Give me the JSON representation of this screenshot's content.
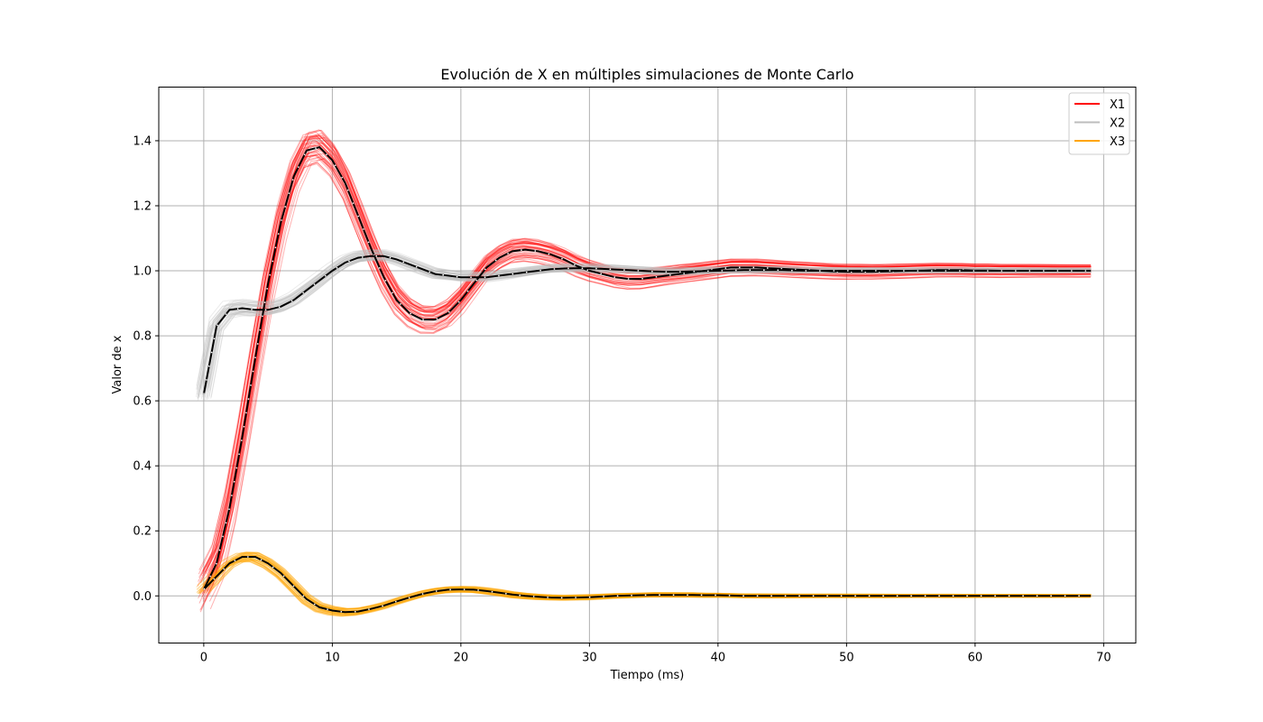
{
  "chart_data": {
    "type": "line",
    "title": "Evolución de X en múltiples simulaciones de Monte Carlo",
    "xlabel": "Tiempo (ms)",
    "ylabel": "Valor de x",
    "xlim": [
      -3.5,
      72.5
    ],
    "ylim": [
      -0.145,
      1.565
    ],
    "xticks": [
      0,
      10,
      20,
      30,
      40,
      50,
      60,
      70
    ],
    "yticks": [
      0.0,
      0.2,
      0.4,
      0.6,
      0.8,
      1.0,
      1.2,
      1.4
    ],
    "grid": true,
    "legend_position": "top-right",
    "x": [
      0,
      1,
      2,
      3,
      4,
      5,
      6,
      7,
      8,
      9,
      10,
      11,
      12,
      13,
      14,
      15,
      16,
      17,
      18,
      19,
      20,
      21,
      22,
      23,
      24,
      25,
      26,
      27,
      28,
      29,
      30,
      31,
      32,
      33,
      34,
      35,
      36,
      37,
      38,
      39,
      40,
      41,
      42,
      43,
      44,
      45,
      46,
      47,
      48,
      49,
      50,
      51,
      52,
      53,
      54,
      55,
      56,
      57,
      58,
      59,
      60,
      61,
      62,
      63,
      64,
      65,
      66,
      67,
      68,
      69
    ],
    "series": [
      {
        "name": "X1",
        "color": "#ff0000",
        "band": 0.05,
        "values": [
          0.02,
          0.1,
          0.27,
          0.49,
          0.73,
          0.96,
          1.15,
          1.29,
          1.37,
          1.38,
          1.34,
          1.27,
          1.17,
          1.07,
          0.98,
          0.91,
          0.87,
          0.85,
          0.85,
          0.87,
          0.91,
          0.96,
          1.01,
          1.04,
          1.06,
          1.065,
          1.06,
          1.05,
          1.035,
          1.015,
          1.0,
          0.99,
          0.98,
          0.975,
          0.975,
          0.98,
          0.985,
          0.99,
          0.995,
          1.0,
          1.005,
          1.01,
          1.01,
          1.01,
          1.008,
          1.006,
          1.004,
          1.002,
          1.0,
          0.998,
          0.997,
          0.997,
          0.997,
          0.998,
          0.999,
          1.0,
          1.001,
          1.002,
          1.002,
          1.002,
          1.001,
          1.001,
          1.0,
          1.0,
          1.0,
          1.0,
          1.0,
          1.0,
          1.0,
          1.0
        ]
      },
      {
        "name": "X2",
        "color": "#bdbdbd",
        "band": 0.022,
        "values": [
          0.62,
          0.83,
          0.88,
          0.885,
          0.88,
          0.88,
          0.89,
          0.91,
          0.94,
          0.97,
          1.0,
          1.025,
          1.04,
          1.045,
          1.045,
          1.035,
          1.02,
          1.005,
          0.99,
          0.985,
          0.98,
          0.98,
          0.98,
          0.985,
          0.99,
          0.995,
          1.0,
          1.005,
          1.007,
          1.008,
          1.008,
          1.006,
          1.004,
          1.002,
          1.0,
          0.998,
          0.997,
          0.997,
          0.998,
          0.999,
          1.0,
          1.001,
          1.002,
          1.002,
          1.002,
          1.002,
          1.001,
          1.0,
          1.0,
          1.0,
          1.0,
          1.0,
          1.0,
          1.0,
          1.0,
          1.0,
          1.0,
          1.0,
          1.0,
          1.0,
          1.0,
          1.0,
          1.0,
          1.0,
          1.0,
          1.0,
          1.0,
          1.0,
          1.0,
          1.0
        ]
      },
      {
        "name": "X3",
        "color": "#ffa500",
        "band": 0.012,
        "values": [
          0.02,
          0.06,
          0.1,
          0.12,
          0.12,
          0.1,
          0.07,
          0.03,
          -0.01,
          -0.035,
          -0.045,
          -0.05,
          -0.048,
          -0.04,
          -0.03,
          -0.017,
          -0.005,
          0.006,
          0.014,
          0.019,
          0.02,
          0.019,
          0.015,
          0.01,
          0.004,
          0.0,
          -0.003,
          -0.005,
          -0.006,
          -0.005,
          -0.004,
          -0.002,
          0.0,
          0.001,
          0.002,
          0.003,
          0.003,
          0.003,
          0.003,
          0.002,
          0.002,
          0.001,
          0.0,
          0.0,
          0.0,
          0.0,
          0.0,
          0.0,
          0.0,
          0.0,
          0.0,
          0.0,
          0.0,
          0.0,
          0.0,
          0.0,
          0.0,
          0.0,
          0.0,
          0.0,
          0.0,
          0.0,
          0.0,
          0.0,
          0.0,
          0.0,
          0.0,
          0.0,
          0.0,
          0.0
        ]
      }
    ]
  }
}
